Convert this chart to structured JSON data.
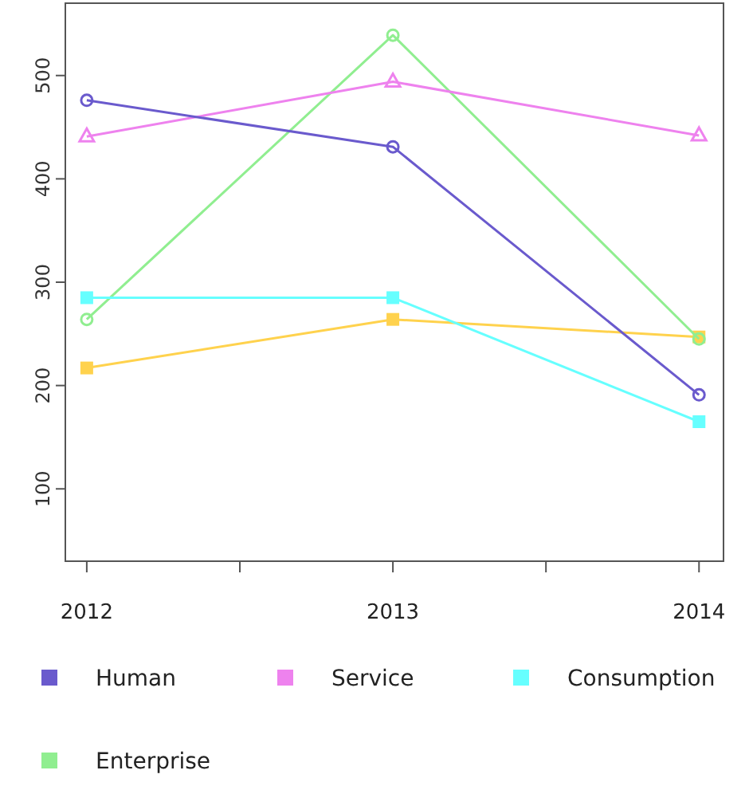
{
  "chart_data": {
    "type": "line",
    "x": [
      2012,
      2013,
      2014
    ],
    "xlim": [
      2011.93,
      2014.08
    ],
    "xticks": [
      {
        "value": 2012,
        "label": "2012"
      },
      {
        "value": 2012.5,
        "label": null
      },
      {
        "value": 2013,
        "label": "2013"
      },
      {
        "value": 2013.5,
        "label": null
      },
      {
        "value": 2014,
        "label": "2014"
      }
    ],
    "ylim": [
      30,
      570
    ],
    "yticks": [
      100,
      200,
      300,
      400,
      500
    ],
    "legend": "bottom",
    "grid": false,
    "series": [
      {
        "name": "Human",
        "color": "#6a5acd",
        "marker": "circle",
        "values": [
          476,
          431,
          191
        ]
      },
      {
        "name": "Service",
        "color": "#ee82ee",
        "marker": "triangle",
        "values": [
          441,
          494,
          442
        ]
      },
      {
        "name": "Consumption",
        "color": "#66ffff",
        "marker": "square",
        "values": [
          285,
          285,
          165
        ]
      },
      {
        "name": "Enterprise",
        "color": "#90ee90",
        "marker": "circle",
        "values": [
          264,
          539,
          245
        ]
      },
      {
        "color": "#ffd24d",
        "marker": "square",
        "values": [
          217,
          264,
          247
        ]
      }
    ]
  }
}
